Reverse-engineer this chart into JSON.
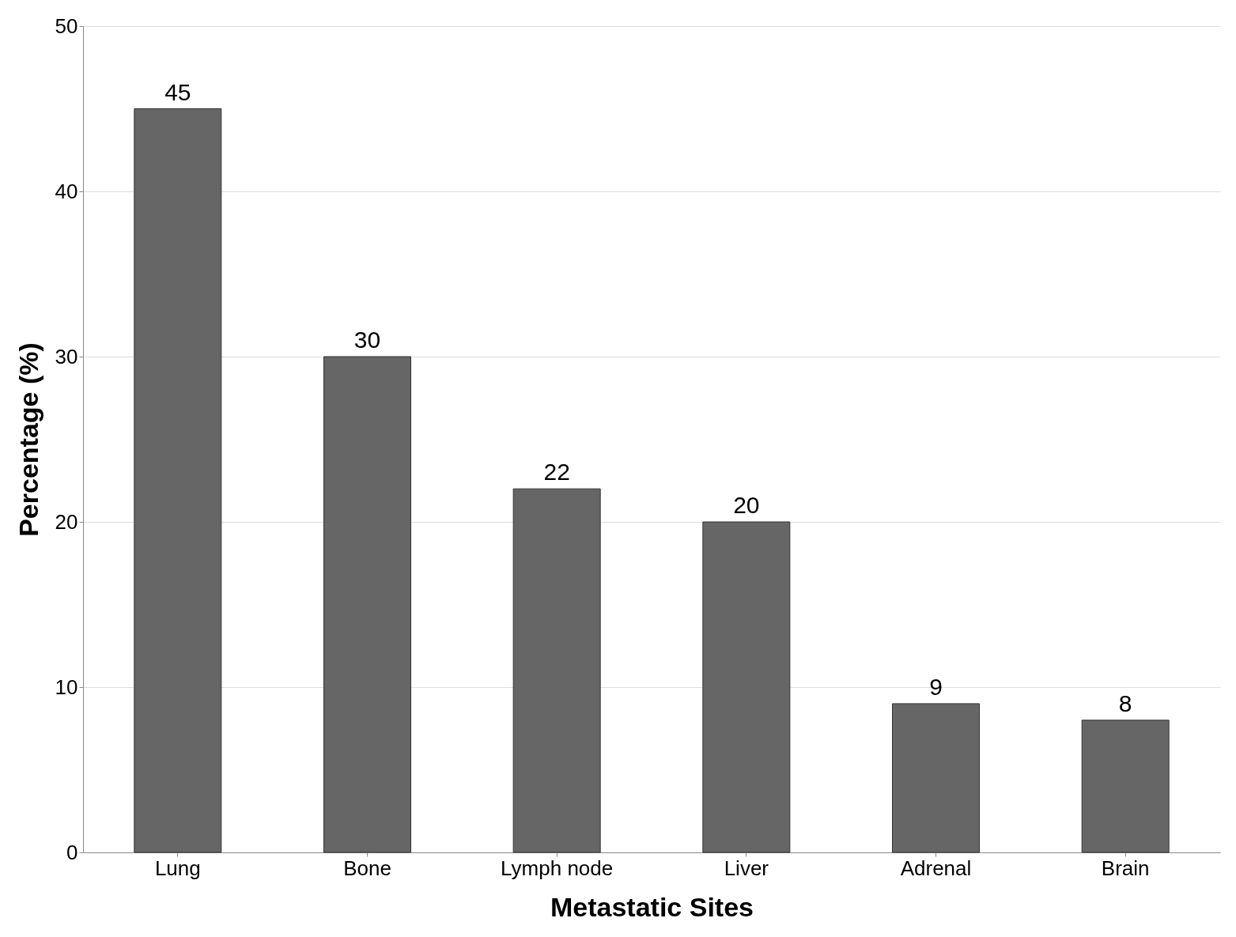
{
  "chart_data": {
    "type": "bar",
    "xlabel": "Metastatic Sites",
    "ylabel": "Percentage (%)",
    "categories": [
      "Lung",
      "Bone",
      "Lymph node",
      "Liver",
      "Adrenal",
      "Brain"
    ],
    "values": [
      45,
      30,
      22,
      20,
      9,
      8
    ],
    "color": "#666666",
    "ylim": [
      0,
      50
    ],
    "yticks": [
      0,
      10,
      20,
      30,
      40,
      50
    ],
    "grid": "y",
    "data_labels": true
  }
}
